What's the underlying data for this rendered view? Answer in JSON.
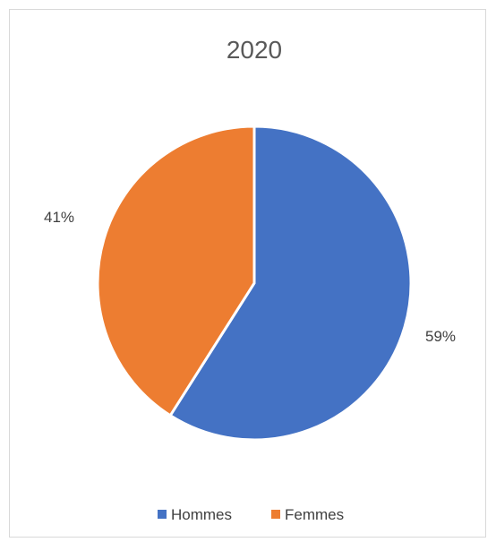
{
  "chart_data": {
    "type": "pie",
    "title": "2020",
    "categories": [
      "Hommes",
      "Femmes"
    ],
    "values": [
      59,
      41
    ],
    "labels": [
      "59%",
      "41%"
    ],
    "colors": [
      "#4472c4",
      "#ed7d31"
    ],
    "legend_position": "bottom",
    "start_angle": "12 o'clock, clockwise"
  }
}
